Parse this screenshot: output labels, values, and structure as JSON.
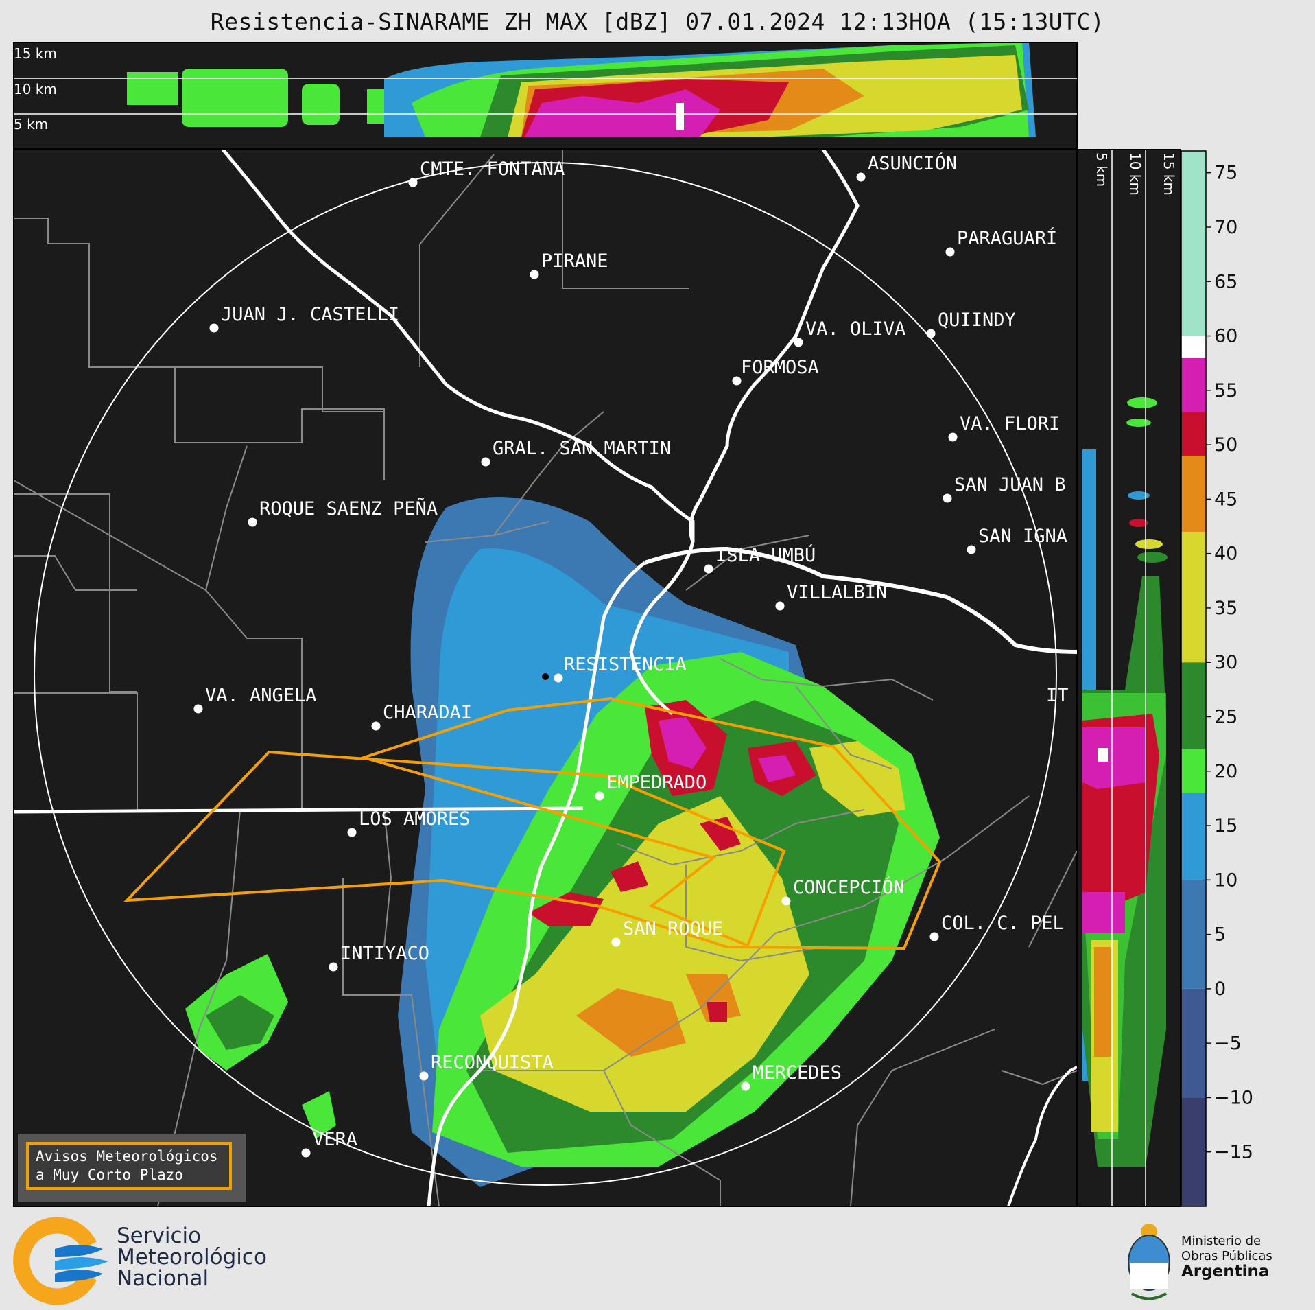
{
  "header": {
    "title": "Resistencia-SINARAME ZH MAX [dBZ] 07.01.2024 12:13HOA (15:13UTC)"
  },
  "profile_top": {
    "altitude_labels": [
      "15 km",
      "10 km",
      "5 km"
    ]
  },
  "profile_right": {
    "altitude_labels": [
      "5 km",
      "10 km",
      "15 km"
    ]
  },
  "colorbar": {
    "ticks": [
      "75",
      "70",
      "65",
      "60",
      "55",
      "50",
      "45",
      "40",
      "35",
      "30",
      "25",
      "20",
      "15",
      "10",
      "5",
      "0",
      "−5",
      "−10",
      "−15"
    ],
    "min": -20,
    "max": 77,
    "stops": [
      {
        "from": -20,
        "to": -10,
        "color": "#3a3e6c"
      },
      {
        "from": -10,
        "to": 0,
        "color": "#3f5a92"
      },
      {
        "from": 0,
        "to": 10,
        "color": "#3c79b3"
      },
      {
        "from": 10,
        "to": 18,
        "color": "#2f9ad6"
      },
      {
        "from": 18,
        "to": 22,
        "color": "#4ae63a"
      },
      {
        "from": 22,
        "to": 30,
        "color": "#2c8a2c"
      },
      {
        "from": 30,
        "to": 42,
        "color": "#d6d82e"
      },
      {
        "from": 42,
        "to": 49,
        "color": "#e38a18"
      },
      {
        "from": 49,
        "to": 53,
        "color": "#c8102e"
      },
      {
        "from": 53,
        "to": 58,
        "color": "#d51fb2"
      },
      {
        "from": 58,
        "to": 60,
        "color": "#ffffff"
      },
      {
        "from": 60,
        "to": 77,
        "color": "#9fe3c8"
      }
    ]
  },
  "map": {
    "cities": [
      {
        "name": "CMTE. FONTANA"
      },
      {
        "name": "ASUNCIÓN"
      },
      {
        "name": "PIRANE"
      },
      {
        "name": "PARAGUARÍ"
      },
      {
        "name": "JUAN J. CASTELLI"
      },
      {
        "name": "VA. OLIVA"
      },
      {
        "name": "QUIINDY"
      },
      {
        "name": "FORMOSA"
      },
      {
        "name": "VA. FLORI"
      },
      {
        "name": "GRAL. SAN MARTIN"
      },
      {
        "name": "SAN JUAN B"
      },
      {
        "name": "ROQUE SAENZ PEÑA"
      },
      {
        "name": "SAN IGNA"
      },
      {
        "name": "ISLA UMBÚ"
      },
      {
        "name": "VILLALBÍN"
      },
      {
        "name": "RESISTENCIA"
      },
      {
        "name": "VA. ANGELA"
      },
      {
        "name": "CHARADAI"
      },
      {
        "name": "IT"
      },
      {
        "name": "EMPEDRADO"
      },
      {
        "name": "LOS AMORES"
      },
      {
        "name": "CONCEPCIÓN"
      },
      {
        "name": "COL. C. PEL"
      },
      {
        "name": "SAN ROQUE"
      },
      {
        "name": "INTIYACO"
      },
      {
        "name": "RECONQUISTA"
      },
      {
        "name": "MERCEDES"
      },
      {
        "name": "VERA"
      }
    ]
  },
  "avisos": {
    "line1": "Avisos Meteorológicos",
    "line2": "a Muy Corto Plazo"
  },
  "footer": {
    "smn": [
      "Servicio",
      "Meteorológico",
      "Nacional"
    ],
    "ministry": [
      "Ministerio de",
      "Obras Públicas",
      "Argentina"
    ]
  },
  "colors": {
    "alert_polygon": "#f5a000",
    "map_background": "#1b1b1b",
    "rivers": "#ffffff"
  }
}
